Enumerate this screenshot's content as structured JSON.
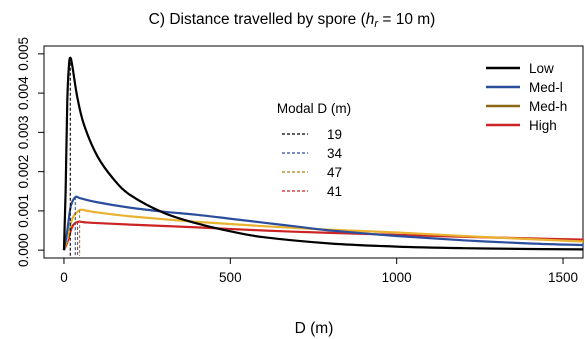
{
  "chart_data": {
    "type": "line",
    "title_prefix": "C) Distance travelled by spore (",
    "title_var": "h",
    "title_sub": "r",
    "title_suffix": " = 10 m)",
    "xlabel": "D (m)",
    "ylabel": "",
    "xlim": [
      -60,
      1560
    ],
    "ylim": [
      -0.0002,
      0.0052
    ],
    "xticks": [
      0,
      500,
      1000,
      1500
    ],
    "xtick_labels": [
      "0",
      "500",
      "1000",
      "1500"
    ],
    "yticks": [
      0.0,
      0.001,
      0.002,
      0.003,
      0.004,
      0.005
    ],
    "ytick_labels": [
      "0.000",
      "0.001",
      "0.002",
      "0.003",
      "0.004",
      "0.005"
    ],
    "grid": false,
    "legend_position": "top-right",
    "series": [
      {
        "name": "Low",
        "color": "#000000",
        "x": [
          0,
          5,
          10,
          15,
          19,
          25,
          40,
          60,
          100,
          150,
          200,
          300,
          400,
          500,
          600,
          800,
          1000,
          1200,
          1400,
          1560
        ],
        "y": [
          0.0,
          0.0015,
          0.0038,
          0.0047,
          0.0049,
          0.0047,
          0.0039,
          0.0032,
          0.0024,
          0.0018,
          0.0014,
          0.00095,
          0.00068,
          0.00048,
          0.00033,
          0.00017,
          9e-05,
          5e-05,
          3e-05,
          2e-05
        ]
      },
      {
        "name": "Med-l",
        "color": "#2b4e9c",
        "x": [
          0,
          10,
          20,
          34,
          50,
          100,
          200,
          300,
          400,
          500,
          600,
          700,
          800,
          1000,
          1200,
          1400,
          1560
        ],
        "y": [
          0.0,
          0.0005,
          0.0011,
          0.00135,
          0.00132,
          0.00122,
          0.00108,
          0.00098,
          0.0009,
          0.0008,
          0.0007,
          0.0006,
          0.0005,
          0.00036,
          0.00025,
          0.00017,
          0.00013
        ]
      },
      {
        "name": "Med-h",
        "color": "#e8b230",
        "x": [
          0,
          10,
          25,
          47,
          70,
          100,
          200,
          400,
          600,
          800,
          1000,
          1200,
          1400,
          1560
        ],
        "y": [
          0.0,
          0.0003,
          0.0008,
          0.00102,
          0.001,
          0.00096,
          0.00086,
          0.00072,
          0.00061,
          0.00052,
          0.00045,
          0.00036,
          0.00028,
          0.00022
        ]
      },
      {
        "name": "High",
        "color": "#cc2424",
        "x": [
          0,
          10,
          25,
          41,
          60,
          100,
          200,
          400,
          600,
          800,
          1000,
          1200,
          1400,
          1560
        ],
        "y": [
          0.0,
          0.0002,
          0.0006,
          0.00072,
          0.00071,
          0.00069,
          0.00065,
          0.00058,
          0.0005,
          0.00044,
          0.00039,
          0.00034,
          0.0003,
          0.00027
        ]
      }
    ],
    "legend_entries": [
      {
        "label": "Low",
        "color": "#000000"
      },
      {
        "label": "Med-l",
        "color": "#2b4e9c"
      },
      {
        "label": "Med-h",
        "color": "#8b6914"
      },
      {
        "label": "High",
        "color": "#cc2424"
      }
    ],
    "modal": {
      "title": "Modal D (m)",
      "entries": [
        {
          "value": 19,
          "label": "19",
          "color": "#000000",
          "y": 0.0049
        },
        {
          "value": 34,
          "label": "34",
          "color": "#2b4e9c",
          "y": 0.00135
        },
        {
          "value": 47,
          "label": "47",
          "color": "#b07d1a",
          "y": 0.00102
        },
        {
          "value": 41,
          "label": "41",
          "color": "#cc2424",
          "y": 0.00072
        }
      ]
    }
  }
}
